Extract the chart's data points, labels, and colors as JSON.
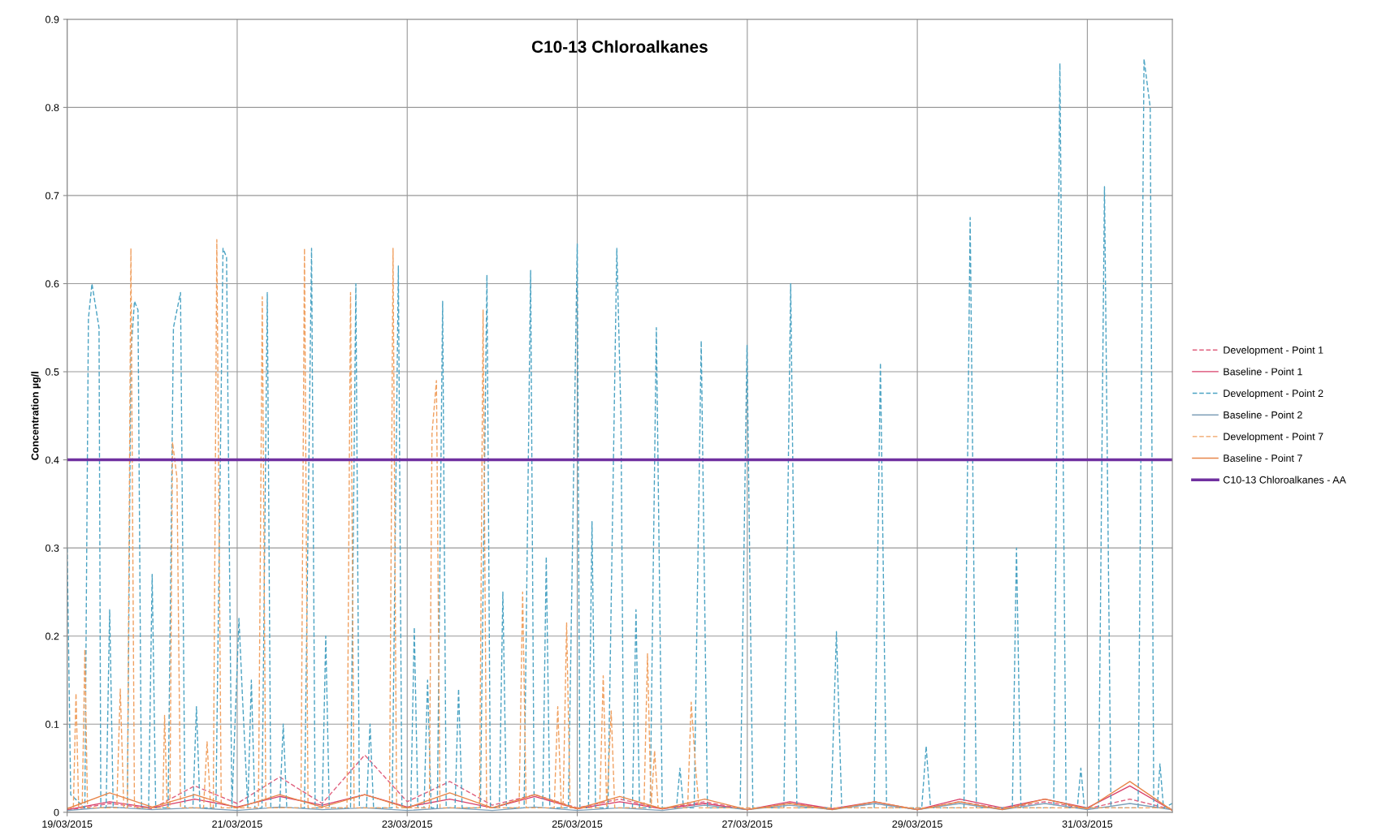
{
  "chart_data": {
    "type": "line",
    "title": "C10-13 Chloroalkanes",
    "ylabel": "Concentration µg/l",
    "x": [
      "2015-03-19T00:00",
      "2015-03-19T12:00",
      "2015-03-20T00:00",
      "2015-03-20T12:00",
      "2015-03-21T00:00",
      "2015-03-21T12:00",
      "2015-03-22T00:00",
      "2015-03-22T12:00",
      "2015-03-23T00:00",
      "2015-03-23T12:00",
      "2015-03-24T00:00",
      "2015-03-24T12:00",
      "2015-03-25T00:00",
      "2015-03-25T12:00",
      "2015-03-26T00:00",
      "2015-03-26T12:00",
      "2015-03-27T00:00",
      "2015-03-27T12:00",
      "2015-03-28T00:00",
      "2015-03-28T12:00",
      "2015-03-29T00:00",
      "2015-03-29T12:00",
      "2015-03-30T00:00",
      "2015-03-30T12:00",
      "2015-03-31T00:00",
      "2015-03-31T12:00",
      "2015-04-01T00:00"
    ],
    "series": [
      {
        "name": "Development - Point 1",
        "color": "#e0607e",
        "line_style": "dashed",
        "values": [
          0.002,
          0.01,
          0.004,
          0.03,
          0.01,
          0.04,
          0.01,
          0.065,
          0.012,
          0.035,
          0.008,
          0.02,
          0.005,
          0.015,
          0.004,
          0.012,
          0.003,
          0.01,
          0.004,
          0.01,
          0.003,
          0.012,
          0.004,
          0.012,
          0.004,
          0.015,
          0.003
        ]
      },
      {
        "name": "Baseline - Point 1",
        "color": "#d9406a",
        "line_style": "solid",
        "values": [
          0.003,
          0.012,
          0.005,
          0.015,
          0.006,
          0.018,
          0.008,
          0.02,
          0.006,
          0.015,
          0.005,
          0.018,
          0.004,
          0.012,
          0.004,
          0.01,
          0.003,
          0.012,
          0.004,
          0.012,
          0.003,
          0.015,
          0.005,
          0.015,
          0.005,
          0.03,
          0.002
        ]
      },
      {
        "name": "Development - Point 2",
        "color": "#4ba3c3",
        "line_style": "dashed",
        "x": [
          "2015-03-19T00:00",
          "2015-03-19T01:00",
          "2015-03-19T05:00",
          "2015-03-19T06:00",
          "2015-03-19T07:00",
          "2015-03-19T09:00",
          "2015-03-19T09:30",
          "2015-03-19T11:00",
          "2015-03-19T12:00",
          "2015-03-19T13:00",
          "2015-03-19T17:00",
          "2015-03-19T18:00",
          "2015-03-19T19:00",
          "2015-03-19T20:00",
          "2015-03-19T21:00",
          "2015-03-19T23:00",
          "2015-03-20T00:00",
          "2015-03-20T01:00",
          "2015-03-20T04:30",
          "2015-03-20T06:00",
          "2015-03-20T08:00",
          "2015-03-20T09:15",
          "2015-03-20T11:30",
          "2015-03-20T12:30",
          "2015-03-20T13:30",
          "2015-03-20T18:00",
          "2015-03-20T20:00",
          "2015-03-20T21:00",
          "2015-03-20T22:30",
          "2015-03-21T00:30",
          "2015-03-21T01:30",
          "2015-03-21T03:00",
          "2015-03-21T04:00",
          "2015-03-21T05:00",
          "2015-03-21T07:00",
          "2015-03-21T08:30",
          "2015-03-21T09:30",
          "2015-03-21T12:00",
          "2015-03-21T13:00",
          "2015-03-21T14:00",
          "2015-03-21T19:00",
          "2015-03-21T21:00",
          "2015-03-21T22:00",
          "2015-03-22T00:00",
          "2015-03-22T01:00",
          "2015-03-22T02:00",
          "2015-03-22T08:00",
          "2015-03-22T09:30",
          "2015-03-22T10:30",
          "2015-03-22T12:30",
          "2015-03-22T13:30",
          "2015-03-22T14:30",
          "2015-03-22T19:45",
          "2015-03-22T21:30",
          "2015-03-22T22:30",
          "2015-03-23T01:00",
          "2015-03-23T02:00",
          "2015-03-23T03:00",
          "2015-03-23T04:45",
          "2015-03-23T05:45",
          "2015-03-23T06:45",
          "2015-03-23T08:30",
          "2015-03-23T10:00",
          "2015-03-23T11:00",
          "2015-03-23T13:30",
          "2015-03-23T14:30",
          "2015-03-23T15:30",
          "2015-03-23T20:40",
          "2015-03-23T22:30",
          "2015-03-23T23:30",
          "2015-03-24T02:00",
          "2015-03-24T03:00",
          "2015-03-24T04:00",
          "2015-03-24T09:00",
          "2015-03-24T10:50",
          "2015-03-24T11:50",
          "2015-03-24T14:15",
          "2015-03-24T15:15",
          "2015-03-24T16:15",
          "2015-03-24T21:30",
          "2015-03-25T00:00",
          "2015-03-25T00:45",
          "2015-03-25T03:10",
          "2015-03-25T04:10",
          "2015-03-25T05:10",
          "2015-03-25T08:40",
          "2015-03-25T11:10",
          "2015-03-25T12:20",
          "2015-03-25T13:10",
          "2015-03-25T15:35",
          "2015-03-25T16:35",
          "2015-03-25T17:35",
          "2015-03-25T20:35",
          "2015-03-25T22:20",
          "2015-03-26T00:00",
          "2015-03-26T04:00",
          "2015-03-26T05:00",
          "2015-03-26T06:00",
          "2015-03-26T09:00",
          "2015-03-26T11:00",
          "2015-03-26T12:45",
          "2015-03-26T22:00",
          "2015-03-26T23:55",
          "2015-03-27T01:35",
          "2015-03-27T10:20",
          "2015-03-27T12:15",
          "2015-03-27T14:00",
          "2015-03-27T23:40",
          "2015-03-28T01:10",
          "2015-03-28T02:40",
          "2015-03-28T11:50",
          "2015-03-28T13:35",
          "2015-03-28T15:20",
          "2015-03-29T01:15",
          "2015-03-29T02:30",
          "2015-03-29T03:45",
          "2015-03-29T13:10",
          "2015-03-29T14:55",
          "2015-03-29T16:40",
          "2015-03-30T02:50",
          "2015-03-30T04:00",
          "2015-03-30T05:15",
          "2015-03-30T14:30",
          "2015-03-30T16:15",
          "2015-03-30T18:00",
          "2015-03-30T21:10",
          "2015-03-30T22:10",
          "2015-03-30T23:10",
          "2015-03-31T03:10",
          "2015-03-31T04:50",
          "2015-03-31T06:40",
          "2015-03-31T14:20",
          "2015-03-31T16:00",
          "2015-03-31T17:45",
          "2015-03-31T18:45",
          "2015-03-31T19:45",
          "2015-03-31T20:30",
          "2015-03-31T21:30",
          "2015-04-01T00:00"
        ],
        "values": [
          0.3,
          0.02,
          0.005,
          0.56,
          0.6,
          0.55,
          0.005,
          0.005,
          0.23,
          0.005,
          0.005,
          0.52,
          0.58,
          0.57,
          0.005,
          0.005,
          0.27,
          0.005,
          0.005,
          0.55,
          0.59,
          0.005,
          0.005,
          0.12,
          0.005,
          0.005,
          0.64,
          0.63,
          0.005,
          0.22,
          0.13,
          0.005,
          0.15,
          0.005,
          0.005,
          0.59,
          0.005,
          0.005,
          0.1,
          0.005,
          0.005,
          0.64,
          0.005,
          0.005,
          0.2,
          0.005,
          0.005,
          0.6,
          0.005,
          0.005,
          0.1,
          0.005,
          0.005,
          0.62,
          0.005,
          0.005,
          0.21,
          0.005,
          0.005,
          0.15,
          0.005,
          0.005,
          0.58,
          0.005,
          0.005,
          0.14,
          0.005,
          0.005,
          0.61,
          0.005,
          0.005,
          0.25,
          0.005,
          0.005,
          0.615,
          0.005,
          0.005,
          0.29,
          0.005,
          0.005,
          0.645,
          0.005,
          0.005,
          0.33,
          0.005,
          0.005,
          0.64,
          0.45,
          0.005,
          0.005,
          0.23,
          0.005,
          0.005,
          0.55,
          0.005,
          0.005,
          0.05,
          0.005,
          0.005,
          0.535,
          0.005,
          0.005,
          0.53,
          0.005,
          0.005,
          0.6,
          0.005,
          0.005,
          0.205,
          0.005,
          0.005,
          0.51,
          0.005,
          0.005,
          0.075,
          0.005,
          0.005,
          0.675,
          0.005,
          0.005,
          0.3,
          0.005,
          0.005,
          0.85,
          0.005,
          0.005,
          0.05,
          0.005,
          0.005,
          0.71,
          0.005,
          0.005,
          0.855,
          0.8,
          0.005,
          0.005,
          0.055,
          0.005,
          0.01
        ]
      },
      {
        "name": "Baseline - Point 2",
        "color": "#7fa0b8",
        "line_style": "solid",
        "values": [
          0.002,
          0.006,
          0.003,
          0.005,
          0.002,
          0.006,
          0.003,
          0.005,
          0.002,
          0.005,
          0.002,
          0.006,
          0.002,
          0.005,
          0.002,
          0.008,
          0.003,
          0.008,
          0.003,
          0.01,
          0.003,
          0.01,
          0.003,
          0.01,
          0.003,
          0.01,
          0.003
        ]
      },
      {
        "name": "Development - Point 7",
        "color": "#f0a060",
        "line_style": "dashed",
        "x": [
          "2015-03-19T00:00",
          "2015-03-19T01:45",
          "2015-03-19T02:30",
          "2015-03-19T03:15",
          "2015-03-19T04:15",
          "2015-03-19T05:00",
          "2015-03-19T05:45",
          "2015-03-19T14:00",
          "2015-03-19T15:00",
          "2015-03-19T16:00",
          "2015-03-19T17:00",
          "2015-03-19T18:00",
          "2015-03-19T19:00",
          "2015-03-20T03:00",
          "2015-03-20T03:30",
          "2015-03-20T04:15",
          "2015-03-20T05:00",
          "2015-03-20T05:45",
          "2015-03-20T07:00",
          "2015-03-20T08:00",
          "2015-03-20T14:30",
          "2015-03-20T15:30",
          "2015-03-20T16:30",
          "2015-03-20T17:15",
          "2015-03-20T18:15",
          "2015-03-20T19:30",
          "2015-03-21T06:00",
          "2015-03-21T07:05",
          "2015-03-21T08:05",
          "2015-03-21T18:00",
          "2015-03-21T19:00",
          "2015-03-21T20:00",
          "2015-03-22T07:00",
          "2015-03-22T08:00",
          "2015-03-22T09:00",
          "2015-03-22T19:00",
          "2015-03-22T20:00",
          "2015-03-22T21:00",
          "2015-03-23T06:15",
          "2015-03-23T07:00",
          "2015-03-23T08:15",
          "2015-03-23T09:15",
          "2015-03-23T20:25",
          "2015-03-23T21:25",
          "2015-03-23T22:25",
          "2015-03-24T07:35",
          "2015-03-24T08:35",
          "2015-03-24T09:35",
          "2015-03-24T17:30",
          "2015-03-24T18:30",
          "2015-03-24T19:30",
          "2015-03-24T20:00",
          "2015-03-24T21:00",
          "2015-03-24T22:00",
          "2015-03-25T06:20",
          "2015-03-25T07:20",
          "2015-03-25T08:20",
          "2015-03-25T09:35",
          "2015-03-25T10:35",
          "2015-03-25T18:50",
          "2015-03-25T19:50",
          "2015-03-25T20:50",
          "2015-03-25T21:50",
          "2015-03-25T22:50",
          "2015-03-26T07:10",
          "2015-03-26T08:10",
          "2015-03-26T09:25",
          "2015-03-26T10:25",
          "2015-04-01T00:00"
        ],
        "values": [
          0.005,
          0.005,
          0.135,
          0.005,
          0.005,
          0.185,
          0.005,
          0.005,
          0.14,
          0.005,
          0.005,
          0.64,
          0.005,
          0.005,
          0.11,
          0.005,
          0.005,
          0.42,
          0.38,
          0.005,
          0.005,
          0.08,
          0.005,
          0.005,
          0.65,
          0.005,
          0.005,
          0.585,
          0.005,
          0.005,
          0.64,
          0.005,
          0.005,
          0.59,
          0.005,
          0.005,
          0.64,
          0.005,
          0.005,
          0.43,
          0.49,
          0.005,
          0.005,
          0.57,
          0.005,
          0.005,
          0.25,
          0.005,
          0.005,
          0.12,
          0.005,
          0.005,
          0.215,
          0.005,
          0.005,
          0.155,
          0.005,
          0.115,
          0.005,
          0.005,
          0.18,
          0.005,
          0.07,
          0.005,
          0.005,
          0.125,
          0.05,
          0.005,
          0.005
        ]
      },
      {
        "name": "Baseline - Point 7",
        "color": "#e8864a",
        "line_style": "solid",
        "values": [
          0.004,
          0.022,
          0.006,
          0.02,
          0.005,
          0.02,
          0.006,
          0.02,
          0.005,
          0.022,
          0.005,
          0.02,
          0.004,
          0.018,
          0.004,
          0.015,
          0.003,
          0.01,
          0.003,
          0.012,
          0.003,
          0.012,
          0.003,
          0.015,
          0.004,
          0.035,
          0.002
        ]
      }
    ],
    "ref_lines": [
      {
        "axis": "y",
        "value": 0.4,
        "label": "C10-13 Chloroalkanes - AA",
        "color": "#7030a0",
        "line_style": "solid"
      }
    ],
    "xlim": [
      "2015-03-19",
      "2015-04-01"
    ],
    "xticks": [
      {
        "value": "2015-03-19",
        "label": "19/03/2015"
      },
      {
        "value": "2015-03-21",
        "label": "21/03/2015"
      },
      {
        "value": "2015-03-23",
        "label": "23/03/2015"
      },
      {
        "value": "2015-03-25",
        "label": "25/03/2015"
      },
      {
        "value": "2015-03-27",
        "label": "27/03/2015"
      },
      {
        "value": "2015-03-29",
        "label": "29/03/2015"
      },
      {
        "value": "2015-03-31",
        "label": "31/03/2015"
      }
    ],
    "ylim": [
      0,
      0.9
    ],
    "yticks": [
      0,
      0.1,
      0.2,
      0.3,
      0.4,
      0.5,
      0.6,
      0.7,
      0.8,
      0.9
    ],
    "grid": true,
    "legend": "right",
    "marker": "none"
  }
}
